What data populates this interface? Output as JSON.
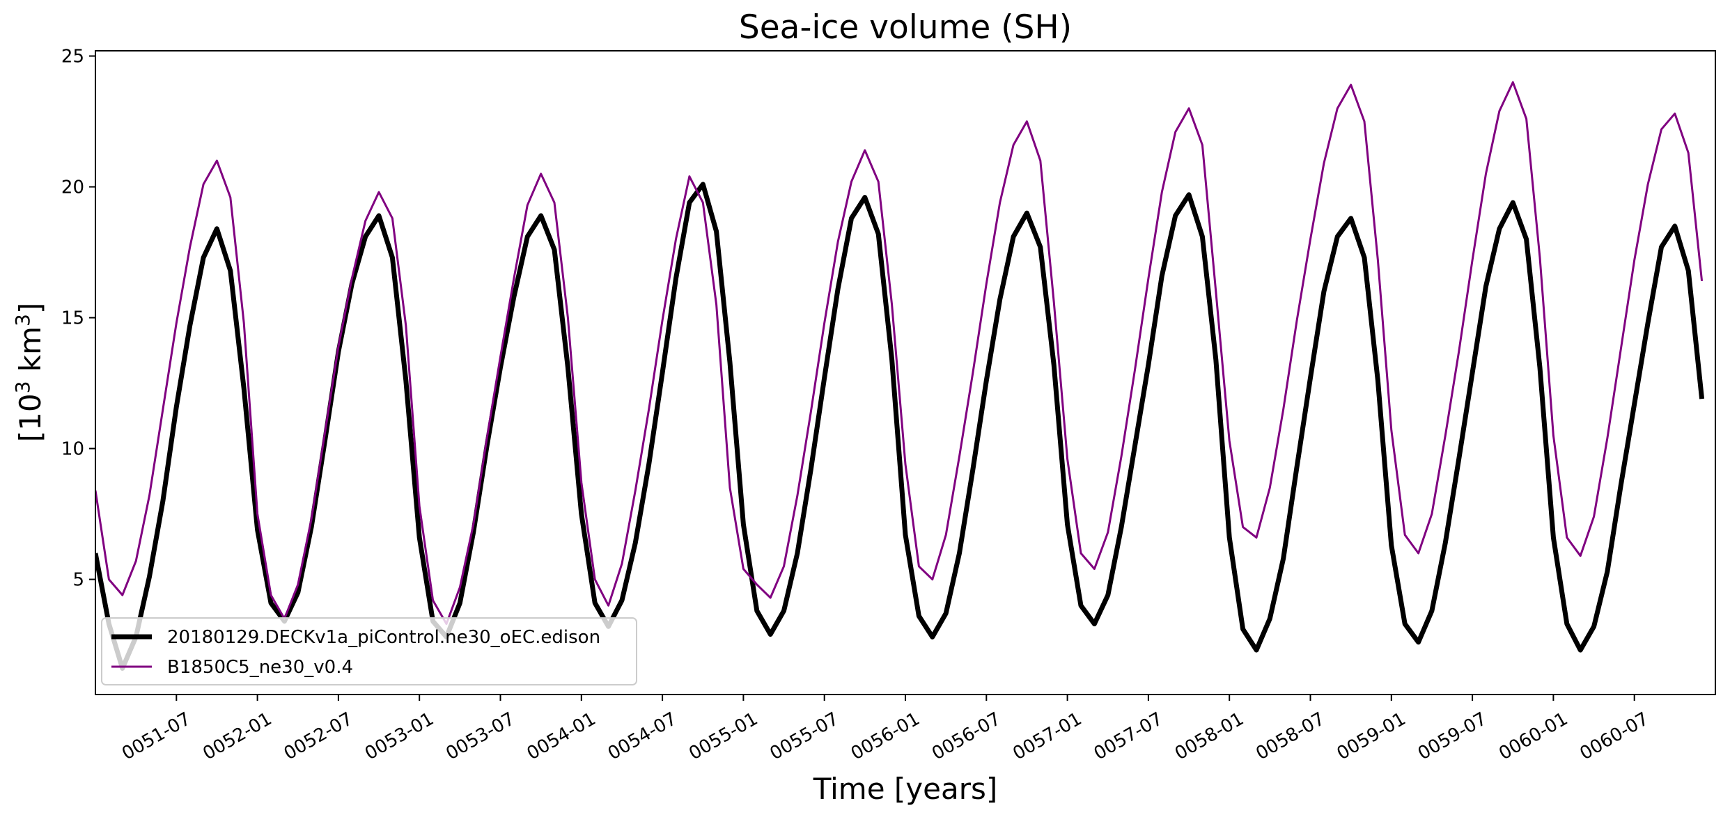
{
  "chart_data": {
    "type": "line",
    "title": "Sea-ice volume (SH)",
    "xlabel": "Time [years]",
    "ylabel_base": "[10",
    "ylabel_sup1": "3",
    "ylabel_mid": " km",
    "ylabel_sup2": "3",
    "ylabel_end": "]",
    "xlim": [
      "0051-01",
      "0061-01"
    ],
    "ylim": [
      0.6,
      25.2
    ],
    "yticks": [
      5,
      10,
      15,
      20,
      25
    ],
    "xticks": [
      "0051-07",
      "0052-01",
      "0052-07",
      "0053-01",
      "0053-07",
      "0054-01",
      "0054-07",
      "0055-01",
      "0055-07",
      "0056-01",
      "0056-07",
      "0057-01",
      "0057-07",
      "0058-01",
      "0058-07",
      "0059-01",
      "0059-07",
      "0060-01",
      "0060-07"
    ],
    "grid": false,
    "legend_position": "lower-left",
    "x": [
      "0051-01",
      "0051-02",
      "0051-03",
      "0051-04",
      "0051-05",
      "0051-06",
      "0051-07",
      "0051-08",
      "0051-09",
      "0051-10",
      "0051-11",
      "0051-12",
      "0052-01",
      "0052-02",
      "0052-03",
      "0052-04",
      "0052-05",
      "0052-06",
      "0052-07",
      "0052-08",
      "0052-09",
      "0052-10",
      "0052-11",
      "0052-12",
      "0053-01",
      "0053-02",
      "0053-03",
      "0053-04",
      "0053-05",
      "0053-06",
      "0053-07",
      "0053-08",
      "0053-09",
      "0053-10",
      "0053-11",
      "0053-12",
      "0054-01",
      "0054-02",
      "0054-03",
      "0054-04",
      "0054-05",
      "0054-06",
      "0054-07",
      "0054-08",
      "0054-09",
      "0054-10",
      "0054-11",
      "0054-12",
      "0055-01",
      "0055-02",
      "0055-03",
      "0055-04",
      "0055-05",
      "0055-06",
      "0055-07",
      "0055-08",
      "0055-09",
      "0055-10",
      "0055-11",
      "0055-12",
      "0056-01",
      "0056-02",
      "0056-03",
      "0056-04",
      "0056-05",
      "0056-06",
      "0056-07",
      "0056-08",
      "0056-09",
      "0056-10",
      "0056-11",
      "0056-12",
      "0057-01",
      "0057-02",
      "0057-03",
      "0057-04",
      "0057-05",
      "0057-06",
      "0057-07",
      "0057-08",
      "0057-09",
      "0057-10",
      "0057-11",
      "0057-12",
      "0058-01",
      "0058-02",
      "0058-03",
      "0058-04",
      "0058-05",
      "0058-06",
      "0058-07",
      "0058-08",
      "0058-09",
      "0058-10",
      "0058-11",
      "0058-12",
      "0059-01",
      "0059-02",
      "0059-03",
      "0059-04",
      "0059-05",
      "0059-06",
      "0059-07",
      "0059-08",
      "0059-09",
      "0059-10",
      "0059-11",
      "0059-12",
      "0060-01",
      "0060-02",
      "0060-03",
      "0060-04",
      "0060-05",
      "0060-06",
      "0060-07",
      "0060-08",
      "0060-09",
      "0060-10",
      "0060-11",
      "0060-12"
    ],
    "series": [
      {
        "name": "20180129.DECKv1a_piControl.ne30_oEC.edison",
        "color": "#000000",
        "values": [
          6.0,
          3.3,
          1.6,
          2.8,
          5.1,
          8.0,
          11.6,
          14.7,
          17.3,
          18.4,
          16.8,
          12.3,
          6.9,
          4.1,
          3.4,
          4.5,
          7.0,
          10.3,
          13.7,
          16.3,
          18.1,
          18.9,
          17.3,
          12.6,
          6.6,
          3.4,
          2.8,
          4.1,
          6.8,
          10.1,
          13.1,
          15.8,
          18.1,
          18.9,
          17.6,
          13.1,
          7.5,
          4.1,
          3.2,
          4.2,
          6.4,
          9.4,
          12.9,
          16.5,
          19.4,
          20.1,
          18.3,
          13.3,
          7.1,
          3.8,
          2.9,
          3.8,
          6.0,
          9.2,
          12.7,
          16.1,
          18.8,
          19.6,
          18.2,
          13.4,
          6.7,
          3.6,
          2.8,
          3.7,
          6.0,
          9.2,
          12.6,
          15.7,
          18.1,
          19.0,
          17.7,
          13.2,
          7.1,
          4.0,
          3.3,
          4.4,
          7.0,
          10.1,
          13.2,
          16.6,
          18.9,
          19.7,
          18.1,
          13.4,
          6.6,
          3.1,
          2.3,
          3.5,
          5.8,
          9.3,
          12.7,
          16.0,
          18.1,
          18.8,
          17.3,
          12.6,
          6.3,
          3.3,
          2.6,
          3.8,
          6.4,
          9.6,
          12.9,
          16.2,
          18.4,
          19.4,
          18.0,
          13.1,
          6.6,
          3.3,
          2.3,
          3.2,
          5.3,
          8.6,
          11.7,
          14.8,
          17.7,
          18.5,
          16.8,
          11.9
        ]
      },
      {
        "name": "B1850C5_ne30_v0.4",
        "color": "#800080",
        "values": [
          8.4,
          5.0,
          4.4,
          5.7,
          8.2,
          11.5,
          14.8,
          17.7,
          20.1,
          21.0,
          19.6,
          14.8,
          7.5,
          4.4,
          3.5,
          4.8,
          7.3,
          10.6,
          13.9,
          16.5,
          18.7,
          19.8,
          18.8,
          14.7,
          7.8,
          4.2,
          3.3,
          4.7,
          7.1,
          10.4,
          13.5,
          16.5,
          19.3,
          20.5,
          19.4,
          15.0,
          8.7,
          5.0,
          4.0,
          5.6,
          8.4,
          11.5,
          14.9,
          18.0,
          20.4,
          19.4,
          15.5,
          8.5,
          5.4,
          4.8,
          4.3,
          5.5,
          8.2,
          11.4,
          14.8,
          17.9,
          20.2,
          21.4,
          20.2,
          15.5,
          9.4,
          5.5,
          5.0,
          6.7,
          9.7,
          12.9,
          16.3,
          19.4,
          21.6,
          22.5,
          21.0,
          15.6,
          9.6,
          6.0,
          5.4,
          6.8,
          9.7,
          13.0,
          16.5,
          19.8,
          22.1,
          23.0,
          21.6,
          16.0,
          10.3,
          7.0,
          6.6,
          8.5,
          11.5,
          14.9,
          18.0,
          20.9,
          23.0,
          23.9,
          22.5,
          17.2,
          10.7,
          6.7,
          6.0,
          7.5,
          10.5,
          13.7,
          17.2,
          20.5,
          22.9,
          24.0,
          22.6,
          17.3,
          10.5,
          6.6,
          5.9,
          7.4,
          10.4,
          13.8,
          17.2,
          20.1,
          22.2,
          22.8,
          21.3,
          16.4
        ]
      }
    ]
  }
}
